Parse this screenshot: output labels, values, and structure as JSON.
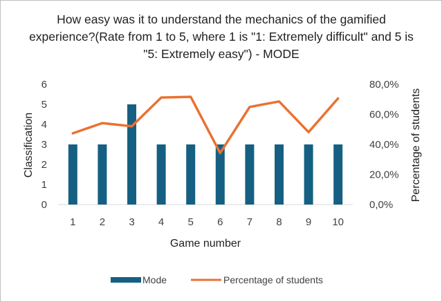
{
  "chart_data": {
    "type": "bar",
    "title": "How easy was it to understand the mechanics of the gamified experience?(Rate from 1 to 5, where 1 is \"1: Extremely difficult\" and 5 is \"5: Extremely easy\") - MODE",
    "xlabel": "Game number",
    "ylabel": "Classification",
    "y2label": "Percentage of students",
    "categories": [
      "1",
      "2",
      "3",
      "4",
      "5",
      "6",
      "7",
      "8",
      "9",
      "10"
    ],
    "ylim": [
      0,
      6
    ],
    "y2lim": [
      0,
      80
    ],
    "yticks": [
      "0",
      "1",
      "2",
      "3",
      "4",
      "5",
      "6"
    ],
    "y2ticks": [
      "0,0%",
      "20,0%",
      "40,0%",
      "60,0%",
      "80,0%"
    ],
    "series": [
      {
        "name": "Mode",
        "type": "bar",
        "axis": "left",
        "color": "#156082",
        "values": [
          3,
          3,
          5,
          3,
          3,
          3,
          3,
          3,
          3,
          3
        ]
      },
      {
        "name": "Percentage of students",
        "type": "line",
        "axis": "right",
        "color": "#e97132",
        "values": [
          47.4,
          54.2,
          52.1,
          71.2,
          71.7,
          34.3,
          64.9,
          68.6,
          48.2,
          70.6
        ]
      }
    ],
    "legend": "bottom",
    "grid": false
  }
}
